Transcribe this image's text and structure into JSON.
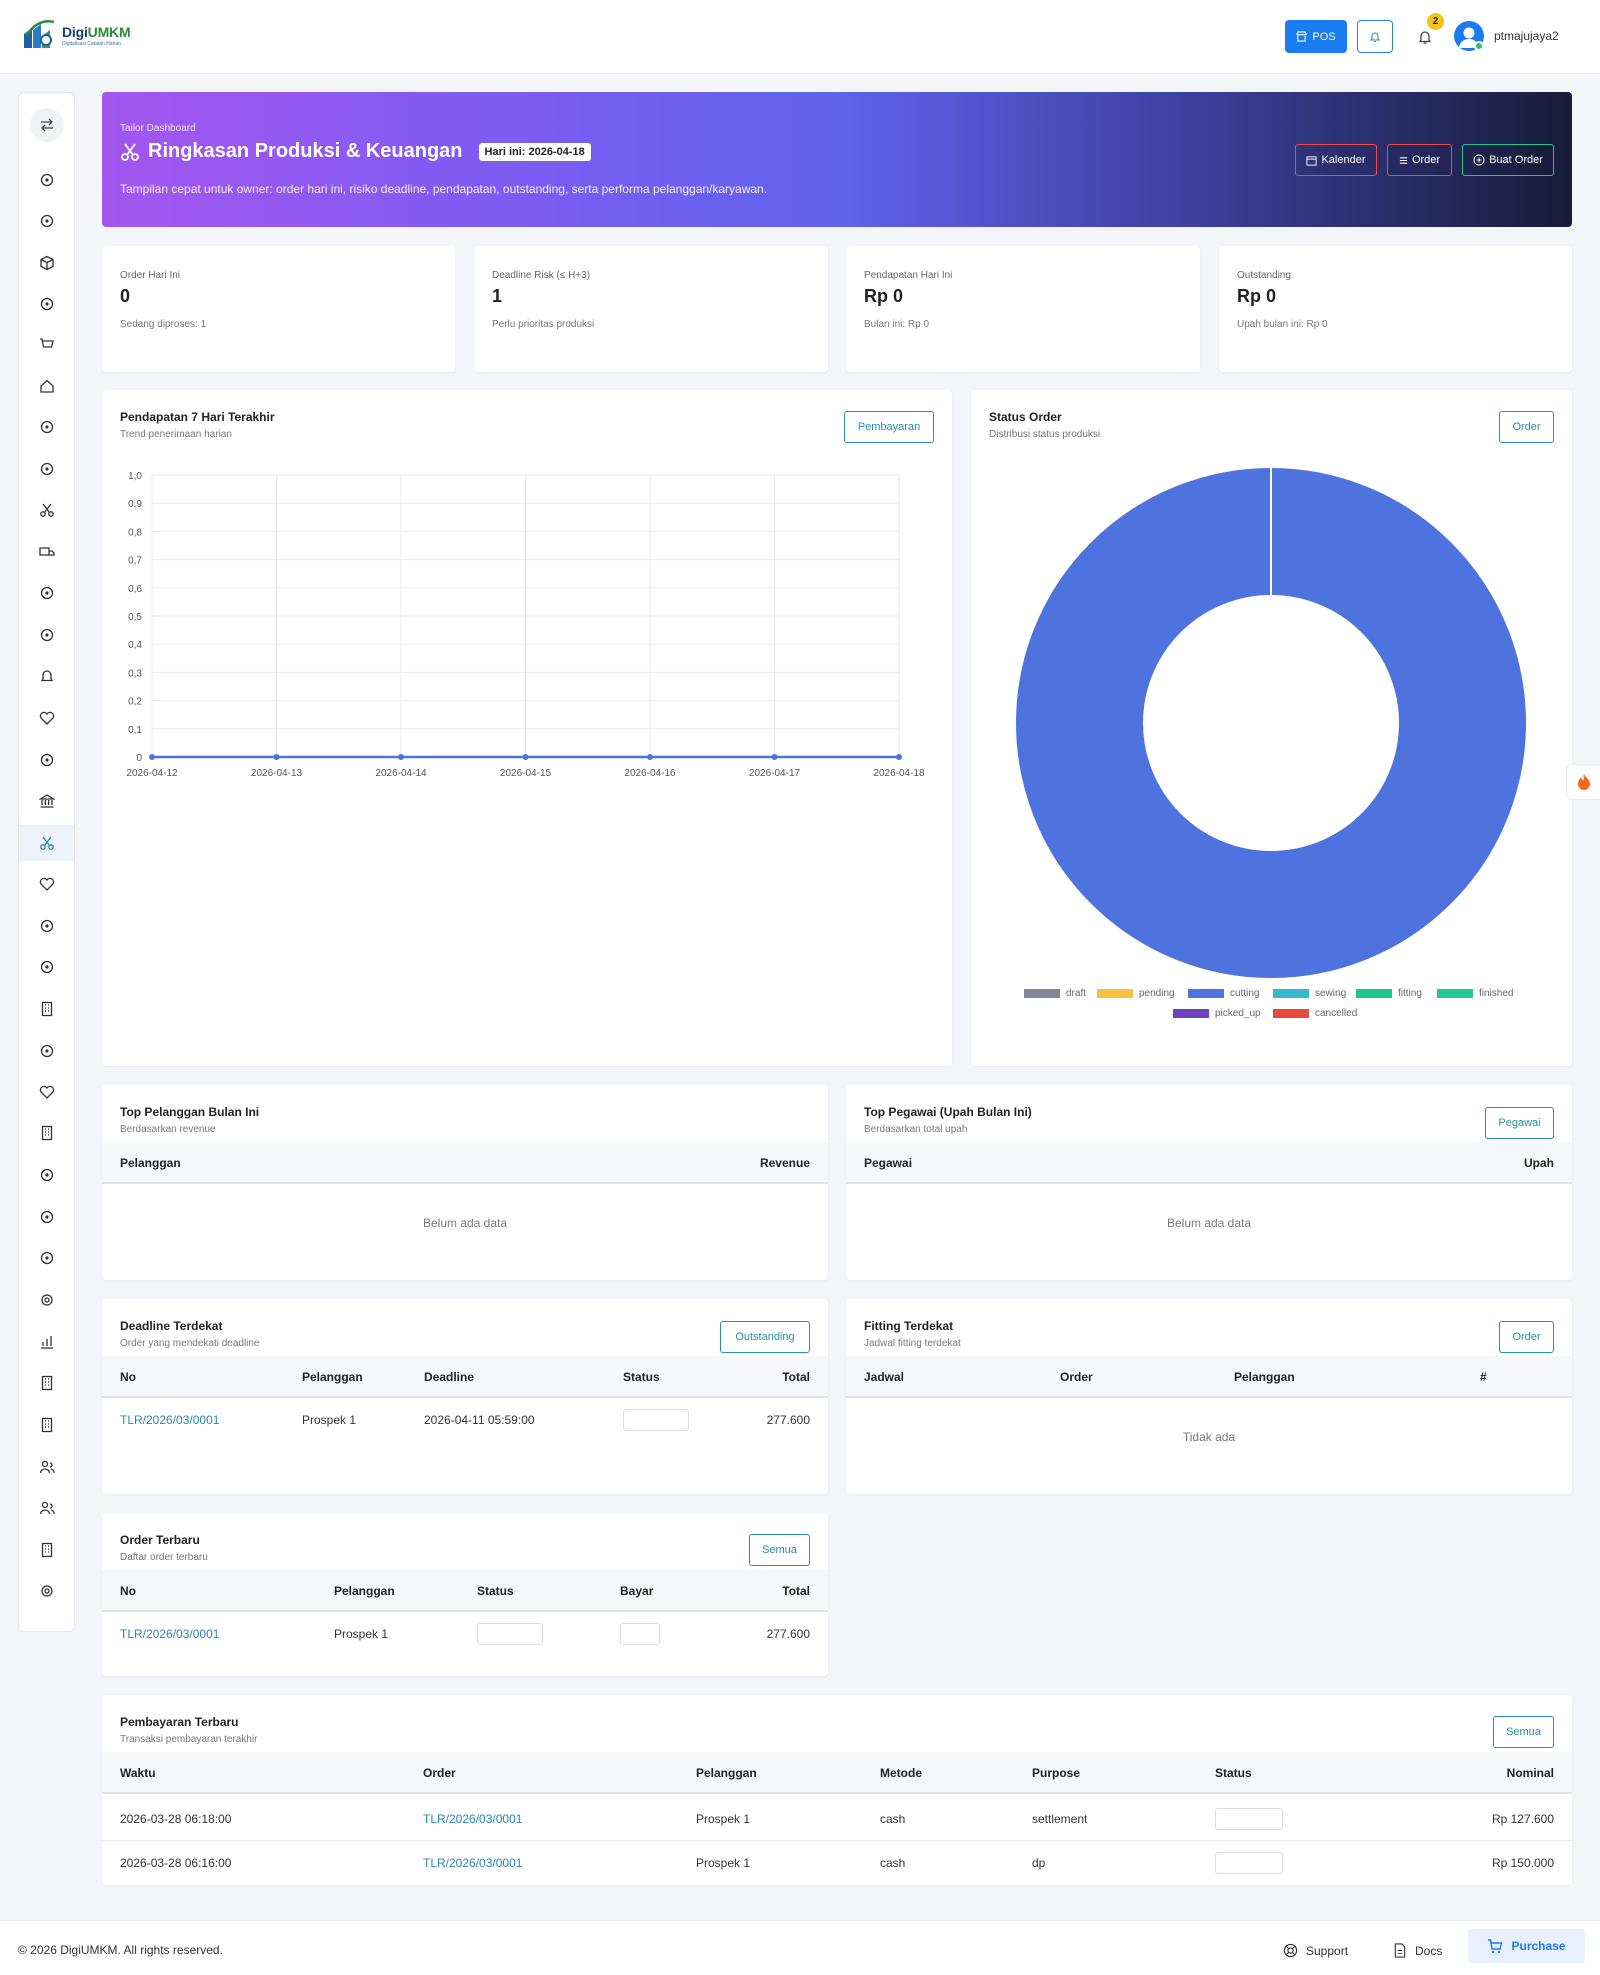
{
  "brand": {
    "name_a": "Digi",
    "name_b": "UMKM",
    "tagline": "Digitalisasi Catatan Harian"
  },
  "topbar": {
    "pos_label": "POS",
    "notif_count": "2",
    "username": "ptmajujaya2"
  },
  "hero": {
    "kicker": "Tailor Dashboard",
    "title": "Ringkasan Produksi & Keuangan",
    "today": "Hari ini: 2026-04-18",
    "description": "Tampilan cepat untuk owner: order hari ini, risiko deadline, pendapatan, outstanding, serta performa pelanggan/karyawan.",
    "buttons": {
      "calendar": "Kalender",
      "order": "Order",
      "create": "Buat Order"
    }
  },
  "stats": [
    {
      "label": "Order Hari Ini",
      "value": "0",
      "sub": "Sedang diproses: 1"
    },
    {
      "label": "Deadline Risk (≤ H+3)",
      "value": "1",
      "sub": "Perlu prioritas produksi"
    },
    {
      "label": "Pendapatan Hari Ini",
      "value": "Rp 0",
      "sub": "Bulan ini: Rp 0"
    },
    {
      "label": "Outstanding",
      "value": "Rp 0",
      "sub": "Upah bulan ini: Rp 0"
    }
  ],
  "revenue_chart": {
    "title": "Pendapatan 7 Hari Terakhir",
    "subtitle": "Trend penerimaan harian",
    "button": "Pembayaran"
  },
  "status_chart": {
    "title": "Status Order",
    "subtitle": "Distribusi status produksi",
    "button": "Order"
  },
  "chart_data": [
    {
      "type": "line",
      "title": "Pendapatan 7 Hari Terakhir",
      "x": [
        "2026-04-12",
        "2026-04-13",
        "2026-04-14",
        "2026-04-15",
        "2026-04-16",
        "2026-04-17",
        "2026-04-18"
      ],
      "y_ticks": [
        "0",
        "0,1",
        "0,2",
        "0,3",
        "0,4",
        "0,5",
        "0,6",
        "0,7",
        "0,8",
        "0,9",
        "1,0"
      ],
      "series": [
        {
          "values": [
            0,
            0,
            0,
            0,
            0,
            0,
            0
          ],
          "color": "#4e73df"
        }
      ],
      "ylim": [
        0,
        1
      ],
      "grid": true
    },
    {
      "type": "pie",
      "title": "Status Order",
      "donut": true,
      "labels": [
        "draft",
        "pending",
        "cutting",
        "sewing",
        "fitting",
        "finished",
        "picked_up",
        "cancelled"
      ],
      "values": [
        0,
        0,
        1,
        0,
        0,
        0,
        0,
        0
      ],
      "colors": [
        "#858796",
        "#f6c23e",
        "#4e73df",
        "#36b9cc",
        "#1cc88a",
        "#20c997",
        "#6f42c1",
        "#e74a3b"
      ],
      "legend": "bottom"
    }
  ],
  "top_customers": {
    "title": "Top Pelanggan Bulan Ini",
    "subtitle": "Berdasarkan revenue",
    "col_a": "Pelanggan",
    "col_b": "Revenue",
    "empty": "Belum ada data"
  },
  "top_employees": {
    "title": "Top Pegawai (Upah Bulan Ini)",
    "subtitle": "Berdasarkan total upah",
    "button": "Pegawai",
    "col_a": "Pegawai",
    "col_b": "Upah",
    "empty": "Belum ada data"
  },
  "deadline": {
    "title": "Deadline Terdekat",
    "subtitle": "Order yang mendekati deadline",
    "button": "Outstanding",
    "cols": [
      "No",
      "Pelanggan",
      "Deadline",
      "Status",
      "Total"
    ],
    "rows": [
      {
        "no": "TLR/2026/03/0001",
        "customer": "Prospek 1",
        "deadline": "2026-04-11 05:59:00",
        "total": "277.600"
      }
    ]
  },
  "fitting": {
    "title": "Fitting Terdekat",
    "subtitle": "Jadwal fitting terdekat",
    "button": "Order",
    "cols": [
      "Jadwal",
      "Order",
      "Pelanggan",
      "#"
    ],
    "empty": "Tidak ada"
  },
  "latest_orders": {
    "title": "Order Terbaru",
    "subtitle": "Daftar order terbaru",
    "button": "Semua",
    "cols": [
      "No",
      "Pelanggan",
      "Status",
      "Bayar",
      "Total"
    ],
    "rows": [
      {
        "no": "TLR/2026/03/0001",
        "customer": "Prospek 1",
        "total": "277.600"
      }
    ]
  },
  "payments": {
    "title": "Pembayaran Terbaru",
    "subtitle": "Transaksi pembayaran terakhir",
    "button": "Semua",
    "cols": [
      "Waktu",
      "Order",
      "Pelanggan",
      "Metode",
      "Purpose",
      "Status",
      "Nominal"
    ],
    "rows": [
      {
        "time": "2026-03-28 06:18:00",
        "order": "TLR/2026/03/0001",
        "customer": "Prospek 1",
        "method": "cash",
        "purpose": "settlement",
        "amount": "Rp 127.600"
      },
      {
        "time": "2026-03-28 06:16:00",
        "order": "TLR/2026/03/0001",
        "customer": "Prospek 1",
        "method": "cash",
        "purpose": "dp",
        "amount": "Rp 150.000"
      }
    ]
  },
  "footer": {
    "copyright": "© 2026 DigiUMKM. All rights reserved.",
    "support": "Support",
    "docs": "Docs",
    "purchase": "Purchase"
  }
}
